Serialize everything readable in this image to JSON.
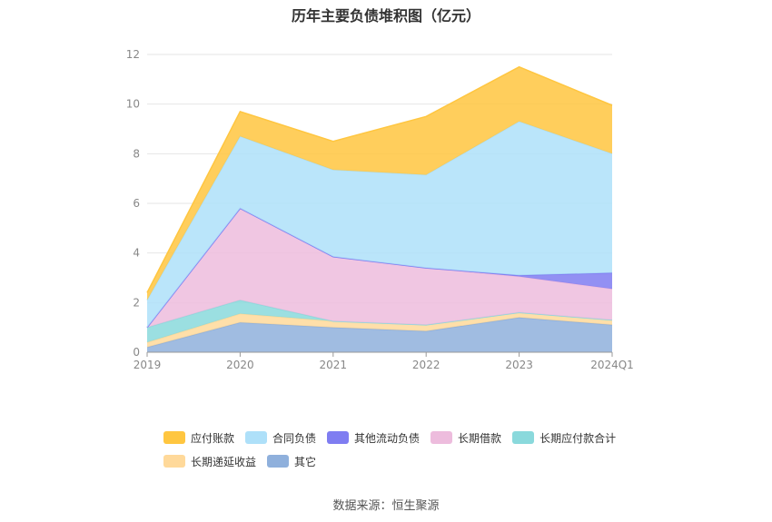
{
  "chart_data": {
    "type": "area",
    "stacked": true,
    "title": "历年主要负债堆积图（亿元）",
    "categories": [
      "2019",
      "2020",
      "2021",
      "2022",
      "2023",
      "2024Q1"
    ],
    "ylim": [
      0,
      12
    ],
    "yticks": [
      "0",
      "2",
      "4",
      "6",
      "8",
      "10",
      "12"
    ],
    "grid": true,
    "legend_position": "bottom",
    "series": [
      {
        "name": "其它",
        "color": "#8fb0dc",
        "values": [
          0.2,
          1.2,
          1.0,
          0.85,
          1.4,
          1.1
        ]
      },
      {
        "name": "长期递延收益",
        "color": "#ffd99a",
        "values": [
          0.2,
          0.35,
          0.25,
          0.25,
          0.2,
          0.2
        ]
      },
      {
        "name": "长期应付款合计",
        "color": "#8ad9dc",
        "values": [
          0.6,
          0.55,
          0.0,
          0.0,
          0.0,
          0.0
        ]
      },
      {
        "name": "长期借款",
        "color": "#edbcdd",
        "values": [
          0.0,
          3.7,
          2.6,
          2.3,
          1.45,
          1.25
        ]
      },
      {
        "name": "其他流动负债",
        "color": "#7f7df1",
        "values": [
          0.0,
          0.0,
          0.0,
          0.0,
          0.05,
          0.65
        ]
      },
      {
        "name": "合同负债",
        "color": "#aee0f9",
        "values": [
          1.1,
          2.9,
          3.5,
          3.75,
          6.2,
          4.8
        ]
      },
      {
        "name": "应付账款",
        "color": "#ffc640",
        "values": [
          0.3,
          1.0,
          1.15,
          2.35,
          2.2,
          1.95
        ]
      }
    ],
    "legend_order": [
      "应付账款",
      "合同负债",
      "其他流动负债",
      "长期借款",
      "长期应付款合计",
      "长期递延收益",
      "其它"
    ]
  },
  "source_text": "数据来源：恒生聚源"
}
